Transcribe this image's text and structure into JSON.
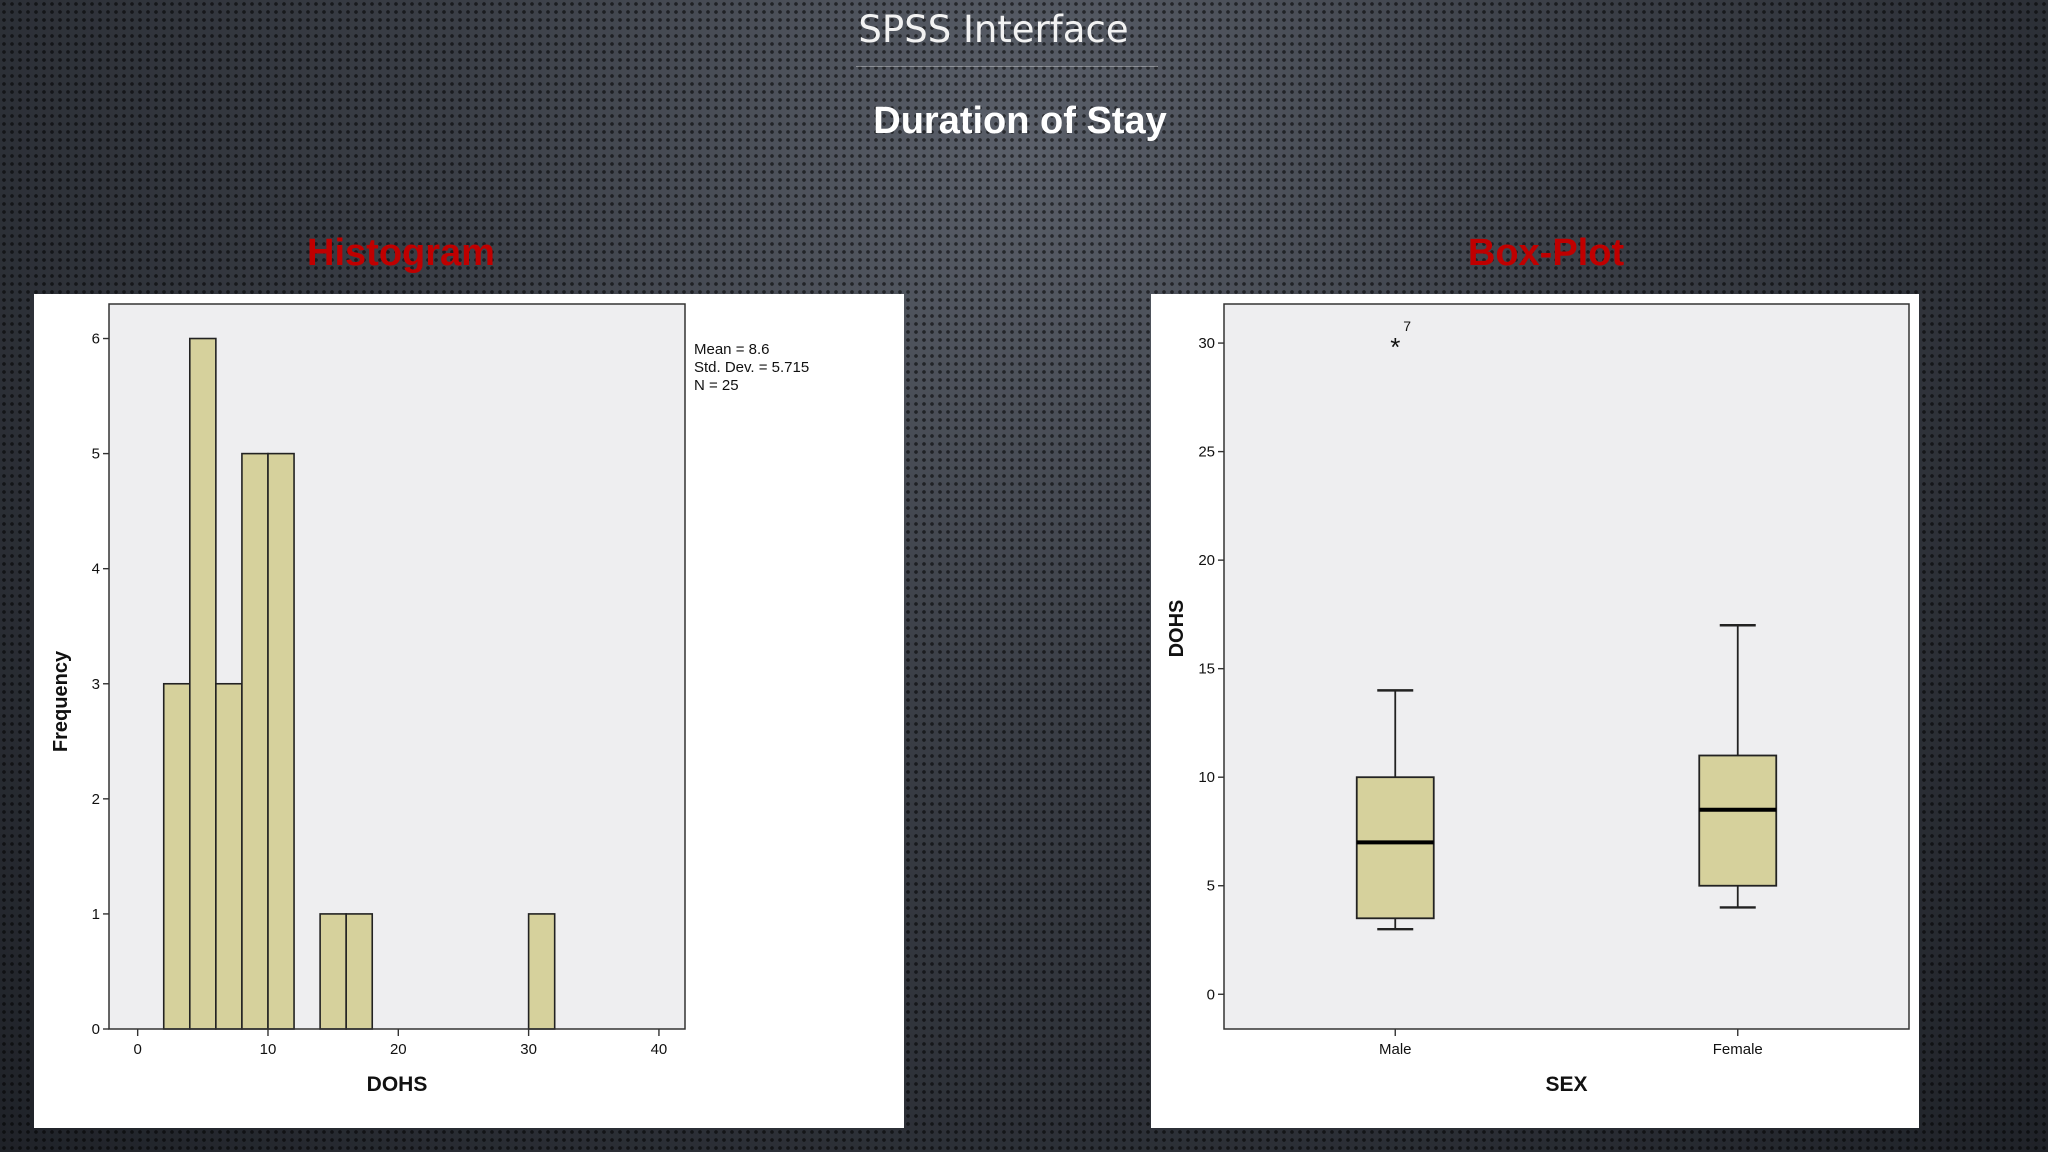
{
  "slide": {
    "title": "SPSS Interface",
    "subtitle": "Duration of Stay",
    "histogram_label": "Histogram",
    "boxplot_label": "Box-Plot"
  },
  "colors": {
    "bar_fill": "#d6d19c",
    "plot_bg": "#eeeef0",
    "label_red": "#c00000"
  },
  "chart_data": [
    {
      "type": "bar",
      "subtype": "histogram",
      "xlabel": "DOHS",
      "ylabel": "Frequency",
      "xlim": [
        -2.2,
        42
      ],
      "ylim": [
        0,
        6.3
      ],
      "xticks": [
        0,
        10,
        20,
        30,
        40
      ],
      "yticks": [
        0,
        1,
        2,
        3,
        4,
        5,
        6
      ],
      "bins": [
        {
          "x0": 2,
          "x1": 4,
          "count": 3
        },
        {
          "x0": 4,
          "x1": 6,
          "count": 6
        },
        {
          "x0": 6,
          "x1": 8,
          "count": 3
        },
        {
          "x0": 8,
          "x1": 10,
          "count": 5
        },
        {
          "x0": 10,
          "x1": 12,
          "count": 5
        },
        {
          "x0": 14,
          "x1": 16,
          "count": 1
        },
        {
          "x0": 16,
          "x1": 18,
          "count": 1
        },
        {
          "x0": 30,
          "x1": 32,
          "count": 1
        }
      ],
      "stats": [
        "Mean = 8.6",
        "Std. Dev. = 5.715",
        "N = 25"
      ]
    },
    {
      "type": "boxplot",
      "xlabel": "SEX",
      "ylabel": "DOHS",
      "ylim": [
        -1.6,
        31.8
      ],
      "yticks": [
        0,
        5,
        10,
        15,
        20,
        25,
        30
      ],
      "categories": [
        "Male",
        "Female"
      ],
      "boxes": [
        {
          "name": "Male",
          "whisker_low": 3,
          "q1": 3.5,
          "median": 7,
          "q3": 10,
          "whisker_high": 14
        },
        {
          "name": "Female",
          "whisker_low": 4,
          "q1": 5,
          "median": 8.5,
          "q3": 11,
          "whisker_high": 17
        }
      ],
      "outliers": [
        {
          "category": "Male",
          "value": 30,
          "label": "7",
          "marker": "*"
        }
      ]
    }
  ]
}
